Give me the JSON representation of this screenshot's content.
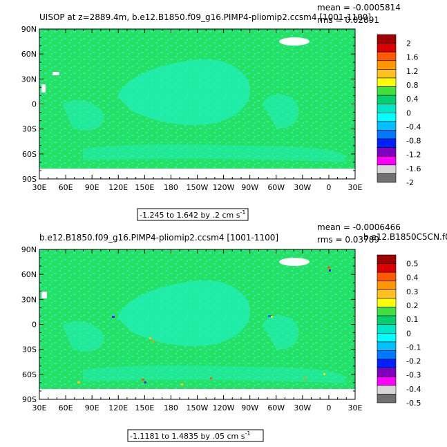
{
  "chart_data": [
    {
      "type": "heatmap",
      "title": "UISOP at z=2889.4m, b.e12.B1850.f09_g16.PIMP4-pliomip2.ccsm4 [1001-1100]",
      "mean_label": "mean = -0.0005814",
      "rms_label": "rms = 0.02891",
      "range_label": "-1.245 to 1.642 by .2 cm s",
      "range_exp": "-1",
      "x_ticks": [
        "30E",
        "60E",
        "90E",
        "120E",
        "150E",
        "180",
        "150W",
        "120W",
        "90W",
        "60W",
        "30W",
        "0",
        "30E"
      ],
      "y_ticks": [
        "90N",
        "60N",
        "30N",
        "0",
        "30S",
        "60S",
        "90S"
      ],
      "colorbar_labels": [
        "2",
        "1.6",
        "1.2",
        "0.8",
        "0.4",
        "0",
        "-0.4",
        "-0.8",
        "-1.2",
        "-1.6",
        "-2"
      ],
      "colorbar_colors": [
        "#a00000",
        "#dd0000",
        "#ff5a00",
        "#ff9600",
        "#ffc020",
        "#ffff00",
        "#40e040",
        "#00d070",
        "#00e8c8",
        "#00ffff",
        "#00c0ff",
        "#0078ff",
        "#0020ff",
        "#8000c0",
        "#ff00ff",
        "#d8d8d8",
        "#707070"
      ],
      "ocean_color": "#28e060",
      "deep_color": "#20f0c0",
      "land_color": "#ffffff"
    },
    {
      "type": "heatmap",
      "title": "b.e12.B1850.f09_g16.PIMP4-pliomip2.ccsm4 [1001-1100]",
      "mean_label": "mean = -0.0006466",
      "rms_label": "rms = 0.03789",
      "overlap_label": "b.e12.B1850C5CN.f0",
      "range_label": "-1.1181 to 1.4835 by .05 cm s",
      "range_exp": "-1",
      "x_ticks": [
        "30E",
        "60E",
        "90E",
        "120E",
        "150E",
        "180",
        "150W",
        "120W",
        "90W",
        "60W",
        "30W",
        "0",
        "30E"
      ],
      "y_ticks": [
        "90N",
        "60N",
        "30N",
        "0",
        "30S",
        "60S",
        "90S"
      ],
      "colorbar_labels": [
        "0.5",
        "0.4",
        "0.3",
        "0.2",
        "0.1",
        "0",
        "-0.1",
        "-0.2",
        "-0.3",
        "-0.4",
        "-0.5"
      ],
      "colorbar_colors": [
        "#a00000",
        "#dd0000",
        "#ff5a00",
        "#ff9600",
        "#ffc020",
        "#ffff00",
        "#40e040",
        "#00d070",
        "#00e8c8",
        "#00ffff",
        "#00c0ff",
        "#0078ff",
        "#0020ff",
        "#8000c0",
        "#ff00ff",
        "#d8d8d8",
        "#707070"
      ],
      "ocean_color": "#28e060",
      "deep_color": "#20f0c0",
      "land_color": "#ffffff"
    }
  ]
}
